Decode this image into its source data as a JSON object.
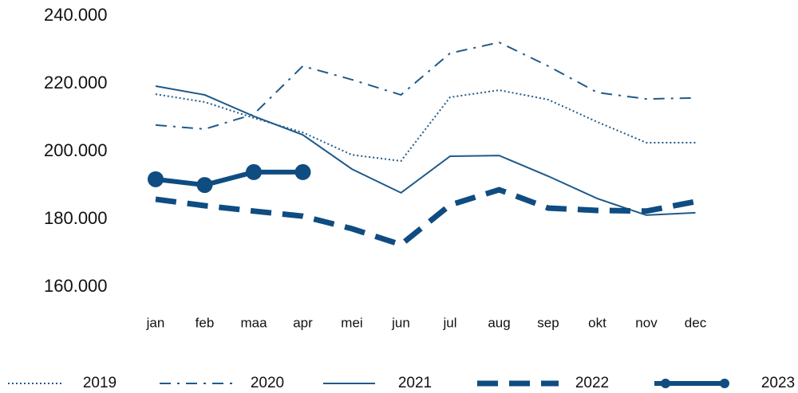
{
  "chart_data": {
    "type": "line",
    "categories": [
      "jan",
      "feb",
      "maa",
      "apr",
      "mei",
      "jun",
      "jul",
      "aug",
      "sep",
      "okt",
      "nov",
      "dec"
    ],
    "ylim": [
      160000,
      240000
    ],
    "yticks": [
      {
        "value": 160000,
        "label": "160.000"
      },
      {
        "value": 180000,
        "label": "180.000"
      },
      {
        "value": 200000,
        "label": "200.000"
      },
      {
        "value": 220000,
        "label": "220.000"
      },
      {
        "value": 240000,
        "label": "240.000"
      }
    ],
    "grid": false,
    "legend": "bottom",
    "series": [
      {
        "name": "2019",
        "color": "#1f5a8a",
        "style": "dotted",
        "values": [
          216900,
          214600,
          209900,
          205600,
          199000,
          197200,
          216000,
          218100,
          215300,
          208700,
          202600,
          202600
        ]
      },
      {
        "name": "2020",
        "color": "#1f5a8a",
        "style": "dashdot",
        "values": [
          207800,
          206600,
          211000,
          225200,
          221200,
          216700,
          229000,
          232200,
          225200,
          217400,
          215500,
          215800
        ]
      },
      {
        "name": "2021",
        "color": "#1f5a8a",
        "style": "solid",
        "values": [
          219300,
          216700,
          210400,
          204900,
          194800,
          187800,
          198600,
          198800,
          192700,
          186100,
          181200,
          181900
        ]
      },
      {
        "name": "2022",
        "color": "#0f4c81",
        "style": "dashed",
        "values": [
          185900,
          184000,
          182400,
          180900,
          177200,
          172500,
          184200,
          188700,
          183300,
          182600,
          182400,
          185200
        ]
      },
      {
        "name": "2023",
        "color": "#0f4c81",
        "style": "markers",
        "values": [
          191800,
          190100,
          193900,
          193900,
          null,
          null,
          null,
          null,
          null,
          null,
          null,
          null
        ]
      }
    ]
  }
}
